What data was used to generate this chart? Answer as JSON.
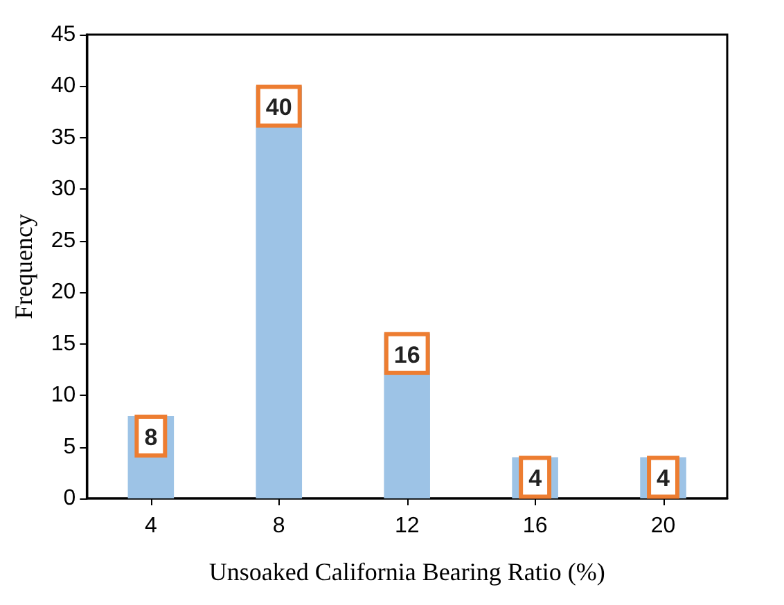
{
  "chart_data": {
    "type": "bar",
    "xlabel": "Unsoaked California Bearing Ratio (%)",
    "ylabel": "Frequency",
    "categories": [
      "4",
      "8",
      "12",
      "16",
      "20"
    ],
    "values": [
      8,
      40,
      16,
      4,
      4
    ],
    "color": "#9dc3e6",
    "ylim": [
      0,
      45
    ],
    "yticks": [
      0,
      5,
      10,
      15,
      20,
      25,
      30,
      35,
      40,
      45
    ],
    "grid": false,
    "data_labels": true
  }
}
